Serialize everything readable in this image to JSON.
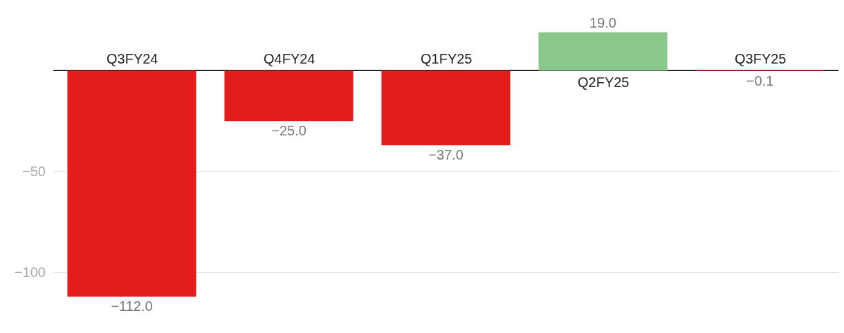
{
  "chart_data": {
    "type": "bar",
    "categories": [
      "Q3FY24",
      "Q4FY24",
      "Q1FY25",
      "Q2FY25",
      "Q3FY25"
    ],
    "values": [
      -112.0,
      -25.0,
      -37.0,
      19.0,
      -0.1
    ],
    "colors": [
      "#e31c1c",
      "#e31c1c",
      "#e31c1c",
      "#8bc78b",
      "#e31c1c"
    ],
    "value_labels": [
      "−112.0",
      "−25.0",
      "−37.0",
      "19.0",
      "−0.1"
    ],
    "ylim": [
      -130,
      35
    ],
    "yticks": [
      {
        "value": -100,
        "label": "−100"
      },
      {
        "value": -50,
        "label": "−50"
      }
    ],
    "grid": "y"
  }
}
